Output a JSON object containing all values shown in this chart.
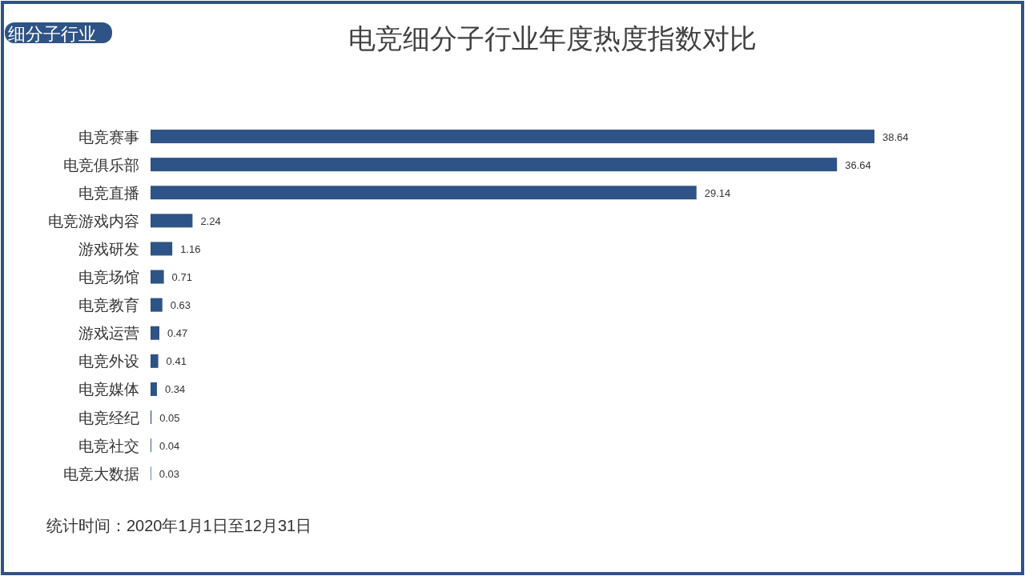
{
  "chart_data": {
    "type": "bar",
    "orientation": "horizontal",
    "title": "电竞细分子行业年度热度指数对比",
    "categories": [
      "电竞赛事",
      "电竞俱乐部",
      "电竞直播",
      "电竞游戏内容",
      "游戏研发",
      "电竞场馆",
      "电竞教育",
      "游戏运营",
      "电竞外设",
      "电竞媒体",
      "电竞经纪",
      "电竞社交",
      "电竞大数据"
    ],
    "values": [
      38.64,
      36.64,
      29.14,
      2.24,
      1.16,
      0.71,
      0.63,
      0.47,
      0.41,
      0.34,
      0.05,
      0.04,
      0.03
    ],
    "color": "#2e5386",
    "data_labels": true,
    "annotations": [
      "细分子行业",
      "统计时间：2020年1月1日至12月31日"
    ]
  }
}
